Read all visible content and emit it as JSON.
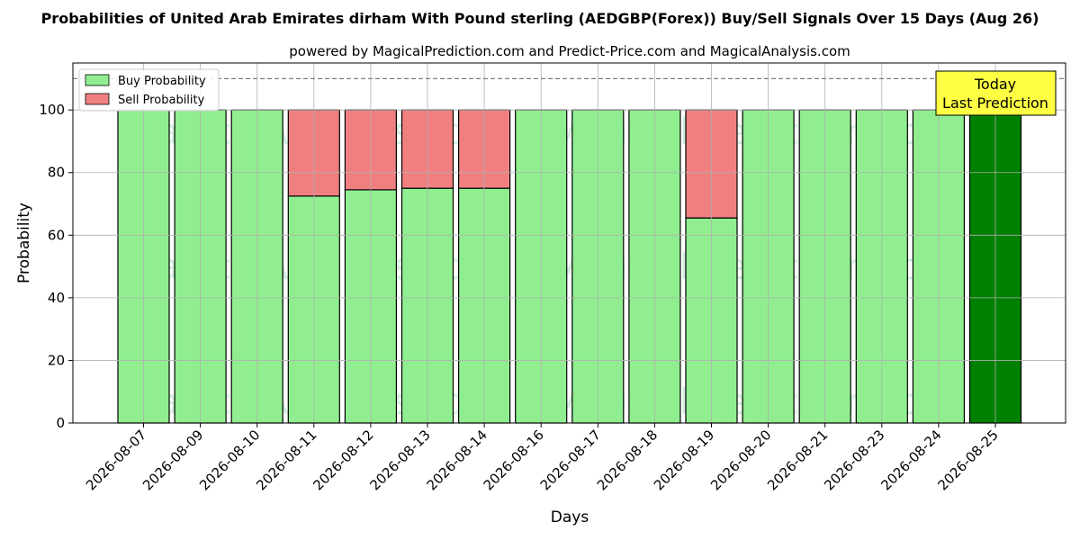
{
  "chart_data": {
    "type": "bar",
    "title": "Probabilities of United Arab Emirates dirham With Pound sterling (AEDGBP(Forex)) Buy/Sell Signals Over 15 Days (Aug 26)",
    "subtitle": "powered by MagicalPrediction.com and Predict-Price.com and MagicalAnalysis.com",
    "xlabel": "Days",
    "ylabel": "Probability",
    "ylim": [
      0,
      115
    ],
    "yticks": [
      0,
      20,
      40,
      60,
      80,
      100
    ],
    "grid": true,
    "legend_position": "top-left",
    "reference_line": 110,
    "categories": [
      "2026-08-07",
      "2026-08-09",
      "2026-08-10",
      "2026-08-11",
      "2026-08-12",
      "2026-08-13",
      "2026-08-14",
      "2026-08-16",
      "2026-08-17",
      "2026-08-18",
      "2026-08-19",
      "2026-08-20",
      "2026-08-21",
      "2026-08-23",
      "2026-08-24",
      "2026-08-25"
    ],
    "series": [
      {
        "name": "Buy Probability",
        "color": "#90ee90",
        "values": [
          100,
          100,
          100,
          72.5,
          74.5,
          75,
          75,
          100,
          100,
          100,
          65.5,
          100,
          100,
          100,
          100,
          100
        ]
      },
      {
        "name": "Sell Probability",
        "color": "#f08080",
        "values": [
          0,
          0,
          0,
          27.5,
          25.5,
          25,
          25,
          0,
          0,
          0,
          34.5,
          0,
          0,
          0,
          0,
          0
        ]
      }
    ],
    "highlight": {
      "index": 15,
      "color": "#008000"
    },
    "annotation": {
      "line1": "Today",
      "line2": "Last Prediction",
      "bg": "#ffff44"
    },
    "watermarks": [
      "MagicalAnalysis.com",
      "MagicalPrediction.com"
    ]
  }
}
